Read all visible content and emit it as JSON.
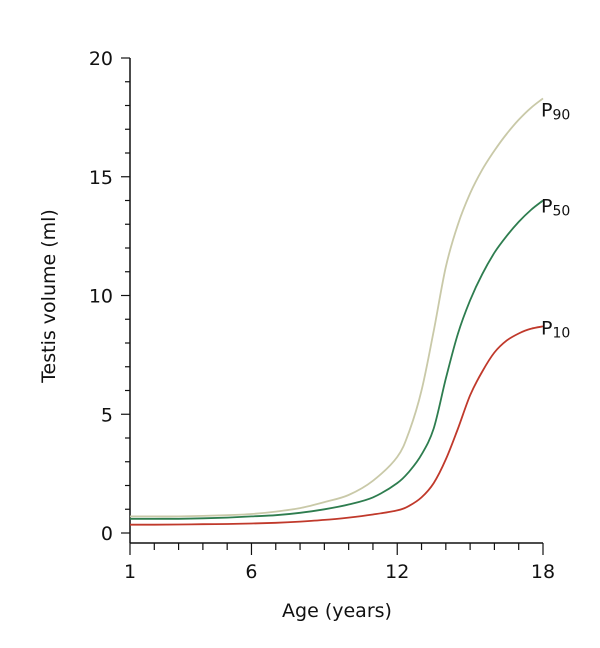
{
  "chart_data": {
    "type": "line",
    "title": "",
    "xlabel": "Age (years)",
    "ylabel": "Testis volume (ml)",
    "xlim": [
      1,
      18
    ],
    "ylim": [
      0,
      20
    ],
    "xticks": [
      1,
      6,
      12,
      18
    ],
    "xtick_labels": [
      "1",
      "6",
      "12",
      "18"
    ],
    "yticks": [
      0,
      5,
      10,
      15,
      20
    ],
    "ytick_labels": [
      "0",
      "5",
      "10",
      "15",
      "20"
    ],
    "grid": false,
    "series": [
      {
        "name": "P90",
        "label_main": "P",
        "label_sub": "90",
        "color": "#c9c9a8",
        "x": [
          1,
          2,
          3,
          4,
          5,
          6,
          7,
          8,
          9,
          10,
          11,
          12,
          12.5,
          13,
          13.5,
          14,
          14.5,
          15,
          15.5,
          16,
          16.5,
          17,
          17.5,
          18
        ],
        "y": [
          0.7,
          0.7,
          0.7,
          0.72,
          0.75,
          0.8,
          0.9,
          1.05,
          1.3,
          1.6,
          2.2,
          3.2,
          4.3,
          6.0,
          8.5,
          11.2,
          13.0,
          14.3,
          15.3,
          16.1,
          16.8,
          17.4,
          17.9,
          18.3
        ]
      },
      {
        "name": "P50",
        "label_main": "P",
        "label_sub": "50",
        "color": "#2e7d4f",
        "x": [
          1,
          2,
          3,
          4,
          5,
          6,
          7,
          8,
          9,
          10,
          11,
          12,
          12.5,
          13,
          13.5,
          14,
          14.5,
          15,
          15.5,
          16,
          16.5,
          17,
          17.5,
          18
        ],
        "y": [
          0.6,
          0.6,
          0.6,
          0.62,
          0.65,
          0.7,
          0.75,
          0.85,
          1.0,
          1.2,
          1.5,
          2.1,
          2.6,
          3.3,
          4.4,
          6.5,
          8.4,
          9.8,
          10.9,
          11.8,
          12.5,
          13.1,
          13.6,
          14.0
        ]
      },
      {
        "name": "P10",
        "label_main": "P",
        "label_sub": "10",
        "color": "#c0392b",
        "x": [
          1,
          2,
          3,
          4,
          5,
          6,
          7,
          8,
          9,
          10,
          11,
          12,
          12.5,
          13,
          13.5,
          14,
          14.5,
          15,
          15.5,
          16,
          16.5,
          17,
          17.5,
          18
        ],
        "y": [
          0.35,
          0.35,
          0.36,
          0.37,
          0.38,
          0.4,
          0.43,
          0.48,
          0.55,
          0.65,
          0.78,
          0.95,
          1.15,
          1.5,
          2.1,
          3.1,
          4.4,
          5.8,
          6.8,
          7.6,
          8.1,
          8.4,
          8.6,
          8.7
        ]
      }
    ]
  }
}
